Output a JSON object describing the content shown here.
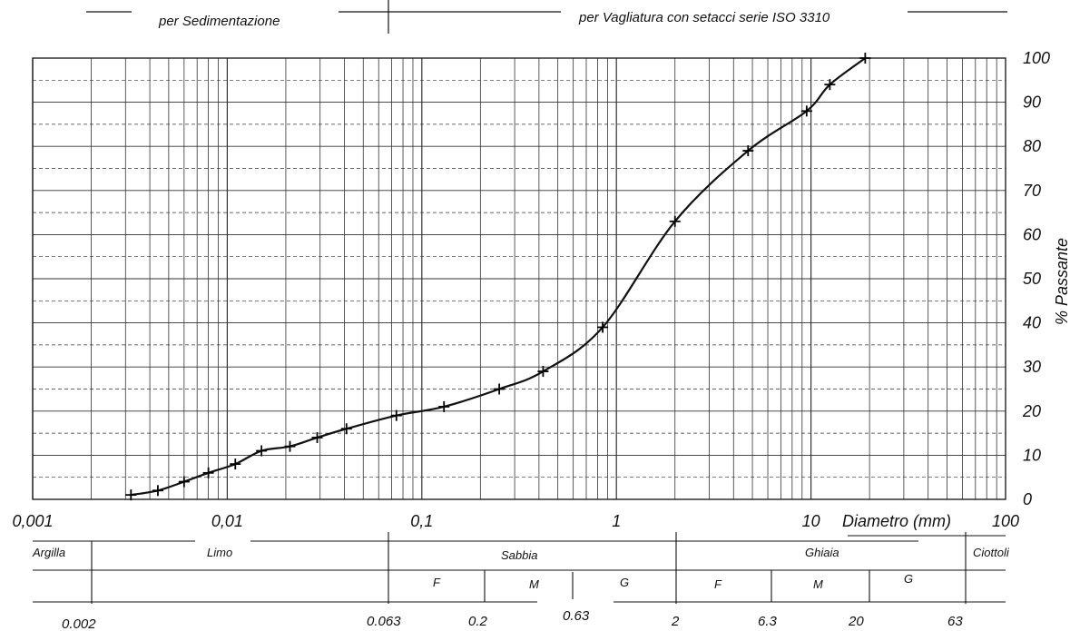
{
  "header": {
    "sedimentation_label": "per Sedimentazione",
    "sieving_label": "per Vagliatura con setacci serie ISO 3310"
  },
  "chart_data": {
    "type": "line",
    "xscale": "log",
    "xlim": [
      0.001,
      100
    ],
    "ylim": [
      0,
      100
    ],
    "grid": true,
    "xlabel": "Diametro (mm)",
    "ylabel": "% Passante",
    "x_tick_labels": [
      "0,001",
      "0,01",
      "0,1",
      "1",
      "10",
      "100"
    ],
    "y_tick_labels": [
      "0",
      "10",
      "20",
      "30",
      "40",
      "50",
      "60",
      "70",
      "80",
      "90",
      "100"
    ],
    "series": [
      {
        "x": [
          0.0032,
          0.0044,
          0.006,
          0.008,
          0.011,
          0.015,
          0.021,
          0.029,
          0.041,
          0.074,
          0.13,
          0.25,
          0.42,
          0.85,
          2.0,
          4.75,
          9.5,
          12.5,
          19.0
        ],
        "y": [
          1,
          2,
          4,
          6,
          8,
          11,
          12,
          14,
          16,
          19,
          21,
          25,
          29,
          39,
          63,
          79,
          88,
          94,
          100
        ]
      }
    ]
  },
  "classification": {
    "fractions": [
      "Argilla",
      "Limo",
      "Sabbia",
      "Ghiaia",
      "Ciottoli"
    ],
    "subfractions": [
      "F",
      "M",
      "G",
      "F",
      "M",
      "G"
    ],
    "boundaries": [
      "0.002",
      "0.063",
      "0.2",
      "0.63",
      "2",
      "6.3",
      "20",
      "63"
    ]
  }
}
